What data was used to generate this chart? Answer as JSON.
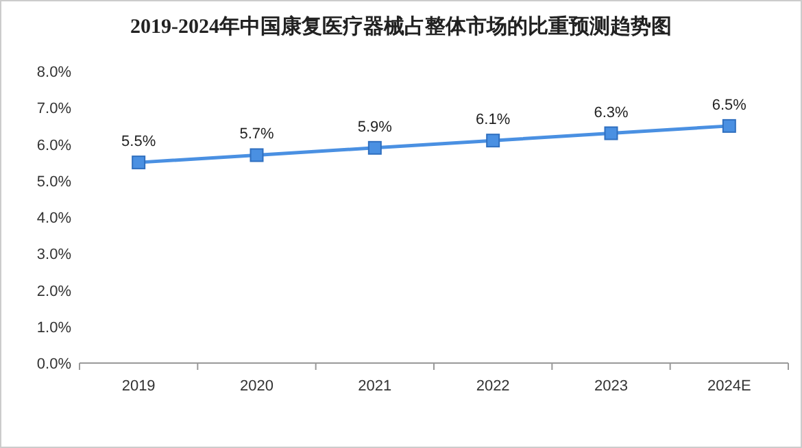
{
  "chart_data": {
    "type": "line",
    "title": "2019-2024年中国康复医疗器械占整体市场的比重预测趋势图",
    "categories": [
      "2019",
      "2020",
      "2021",
      "2022",
      "2023",
      "2024E"
    ],
    "series": [
      {
        "color": "#4a90e2",
        "values": [
          5.5,
          5.7,
          5.9,
          6.1,
          6.3,
          6.5
        ],
        "value_labels": [
          "5.5%",
          "5.7%",
          "5.9%",
          "6.1%",
          "6.3%",
          "6.5%"
        ]
      }
    ],
    "ylim": [
      0,
      8
    ],
    "yticks": [
      {
        "value": 0,
        "label": "0.0%"
      },
      {
        "value": 1,
        "label": "1.0%"
      },
      {
        "value": 2,
        "label": "2.0%"
      },
      {
        "value": 3,
        "label": "3.0%"
      },
      {
        "value": 4,
        "label": "4.0%"
      },
      {
        "value": 5,
        "label": "5.0%"
      },
      {
        "value": 6,
        "label": "6.0%"
      },
      {
        "value": 7,
        "label": "7.0%"
      },
      {
        "value": 8,
        "label": "8.0%"
      }
    ],
    "marker": "square",
    "grid": false
  }
}
